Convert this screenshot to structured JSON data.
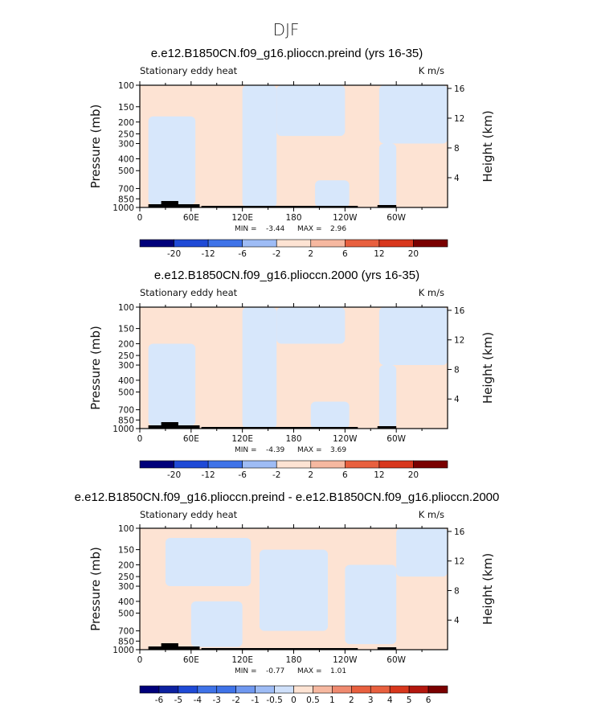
{
  "figure_title": "DJF",
  "colors": {
    "background_positive": "#fde3d3",
    "background_negative": "#d7e7fb",
    "topography": "#000000",
    "palette": [
      "#00007a",
      "#0d21a0",
      "#1f4ad6",
      "#3f73e8",
      "#6f98f0",
      "#9ebcf5",
      "#cfe0fa",
      "#fde3d3",
      "#f6b8a0",
      "#ef8a6f",
      "#e8603f",
      "#d8371d",
      "#b3170e",
      "#7a0000"
    ]
  },
  "chart_data": [
    {
      "type": "heatmap",
      "title": "e.e12.B1850CN.f09_g16.plioccn.preind (yrs 16-35)",
      "left_label": "Stationary eddy heat",
      "units": "K m/s",
      "xlabel": "",
      "ylabel": "Pressure (mb)",
      "ylabel_right": "Height (km)",
      "x_ticks": [
        "0",
        "60E",
        "120E",
        "180",
        "120W",
        "60W"
      ],
      "x_tick_values": [
        0,
        60,
        120,
        180,
        240,
        300
      ],
      "xlim": [
        0,
        360
      ],
      "y_ticks": [
        "100",
        "150",
        "200",
        "250",
        "300",
        "400",
        "500",
        "700",
        "850",
        "1000"
      ],
      "y_tick_values": [
        100,
        150,
        200,
        250,
        300,
        400,
        500,
        700,
        850,
        1000
      ],
      "ylim": [
        1000,
        100
      ],
      "y_scale": "log",
      "right_ticks": [
        "4",
        "8",
        "12",
        "16"
      ],
      "right_tick_values": [
        4,
        8,
        12,
        16
      ],
      "min_label": "MIN =",
      "min_value": "-3.44",
      "max_label": "MAX =",
      "max_value": "2.96",
      "colorbar_ticks": [
        "-20",
        "-12",
        "-6",
        "-2",
        "2",
        "6",
        "12",
        "20"
      ],
      "regions": [
        {
          "sign": "negative",
          "x": [
            120,
            160
          ],
          "p": [
            100,
            1000
          ]
        },
        {
          "sign": "negative",
          "x": [
            10,
            65
          ],
          "p": [
            180,
            950
          ]
        },
        {
          "sign": "negative",
          "x": [
            160,
            240
          ],
          "p": [
            100,
            260
          ]
        },
        {
          "sign": "negative",
          "x": [
            280,
            360
          ],
          "p": [
            100,
            300
          ]
        },
        {
          "sign": "negative",
          "x": [
            280,
            300
          ],
          "p": [
            300,
            1000
          ]
        },
        {
          "sign": "negative",
          "x": [
            205,
            245
          ],
          "p": [
            600,
            1000
          ]
        }
      ]
    },
    {
      "type": "heatmap",
      "title": "e.e12.B1850CN.f09_g16.plioccn.2000 (yrs 16-35)",
      "left_label": "Stationary eddy heat",
      "units": "K m/s",
      "xlabel": "",
      "ylabel": "Pressure (mb)",
      "ylabel_right": "Height (km)",
      "x_ticks": [
        "0",
        "60E",
        "120E",
        "180",
        "120W",
        "60W"
      ],
      "x_tick_values": [
        0,
        60,
        120,
        180,
        240,
        300
      ],
      "xlim": [
        0,
        360
      ],
      "y_ticks": [
        "100",
        "150",
        "200",
        "250",
        "300",
        "400",
        "500",
        "700",
        "850",
        "1000"
      ],
      "y_tick_values": [
        100,
        150,
        200,
        250,
        300,
        400,
        500,
        700,
        850,
        1000
      ],
      "ylim": [
        1000,
        100
      ],
      "y_scale": "log",
      "right_ticks": [
        "4",
        "8",
        "12",
        "16"
      ],
      "right_tick_values": [
        4,
        8,
        12,
        16
      ],
      "min_label": "MIN =",
      "min_value": "-4.39",
      "max_label": "MAX =",
      "max_value": "3.69",
      "colorbar_ticks": [
        "-20",
        "-12",
        "-6",
        "-2",
        "2",
        "6",
        "12",
        "20"
      ],
      "regions": [
        {
          "sign": "negative",
          "x": [
            120,
            160
          ],
          "p": [
            100,
            1000
          ]
        },
        {
          "sign": "negative",
          "x": [
            10,
            65
          ],
          "p": [
            200,
            950
          ]
        },
        {
          "sign": "negative",
          "x": [
            160,
            240
          ],
          "p": [
            100,
            200
          ]
        },
        {
          "sign": "negative",
          "x": [
            280,
            360
          ],
          "p": [
            100,
            300
          ]
        },
        {
          "sign": "negative",
          "x": [
            280,
            300
          ],
          "p": [
            300,
            1000
          ]
        },
        {
          "sign": "negative",
          "x": [
            200,
            245
          ],
          "p": [
            600,
            1000
          ]
        }
      ]
    },
    {
      "type": "heatmap",
      "title": "e.e12.B1850CN.f09_g16.plioccn.preind - e.e12.B1850CN.f09_g16.plioccn.2000",
      "left_label": "Stationary eddy heat",
      "units": "K m/s",
      "xlabel": "",
      "ylabel": "Pressure (mb)",
      "ylabel_right": "Height (km)",
      "x_ticks": [
        "0",
        "60E",
        "120E",
        "180",
        "120W",
        "60W"
      ],
      "x_tick_values": [
        0,
        60,
        120,
        180,
        240,
        300
      ],
      "xlim": [
        0,
        360
      ],
      "y_ticks": [
        "100",
        "150",
        "200",
        "250",
        "300",
        "400",
        "500",
        "700",
        "850",
        "1000"
      ],
      "y_tick_values": [
        100,
        150,
        200,
        250,
        300,
        400,
        500,
        700,
        850,
        1000
      ],
      "ylim": [
        1000,
        100
      ],
      "y_scale": "log",
      "right_ticks": [
        "4",
        "8",
        "12",
        "16"
      ],
      "right_tick_values": [
        4,
        8,
        12,
        16
      ],
      "min_label": "MIN =",
      "min_value": "-0.77",
      "max_label": "MAX =",
      "max_value": "1.01",
      "colorbar_ticks": [
        "-6",
        "-5",
        "-4",
        "-3",
        "-2",
        "-1",
        "-0.5",
        "0",
        "0.5",
        "1",
        "2",
        "3",
        "4",
        "5",
        "6"
      ],
      "regions": [
        {
          "sign": "negative",
          "x": [
            30,
            130
          ],
          "p": [
            120,
            300
          ]
        },
        {
          "sign": "negative",
          "x": [
            140,
            220
          ],
          "p": [
            150,
            700
          ]
        },
        {
          "sign": "negative",
          "x": [
            240,
            300
          ],
          "p": [
            200,
            900
          ]
        },
        {
          "sign": "negative",
          "x": [
            300,
            360
          ],
          "p": [
            100,
            250
          ]
        },
        {
          "sign": "negative",
          "x": [
            60,
            120
          ],
          "p": [
            400,
            950
          ]
        }
      ]
    }
  ]
}
